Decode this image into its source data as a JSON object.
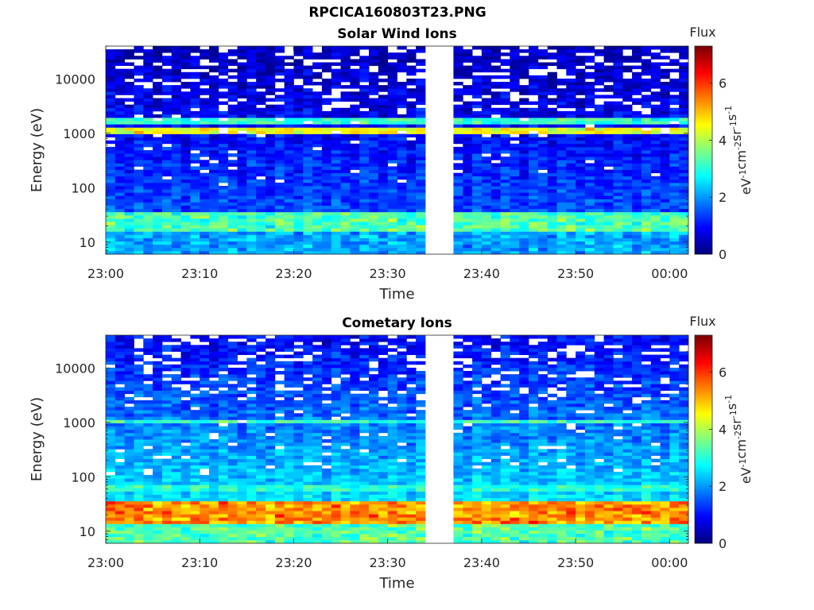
{
  "figure": {
    "filename_title": "RPCICA160803T23.PNG"
  },
  "chart_data": [
    {
      "type": "heatmap",
      "title": "Solar Wind Ions",
      "xlabel": "Time",
      "ylabel": "Energy (eV)",
      "y_scale": "log",
      "xlim": [
        "23:00",
        "00:02"
      ],
      "ylim": [
        6,
        40000
      ],
      "x_ticks": [
        "23:00",
        "23:10",
        "23:20",
        "23:30",
        "23:40",
        "23:50",
        "00:00"
      ],
      "y_ticks": [
        10,
        100,
        1000,
        10000
      ],
      "y_tick_labels": [
        "10",
        "100",
        "1000",
        "10000"
      ],
      "data_gap": [
        "23:34",
        "23:37"
      ],
      "colorbar": {
        "label_top": "Flux",
        "label": "eV-1cm-2sr-1s-1",
        "range": [
          0,
          7.3
        ],
        "ticks": [
          0,
          2,
          4,
          6
        ],
        "colormap": "jet"
      },
      "features": [
        {
          "energy_eV": 1000,
          "flux_level": 4.5,
          "note": "bright band at ~1000 eV"
        },
        {
          "energy_eV": 22,
          "flux_level": 3.5,
          "note": "band at ~20-30 eV"
        },
        {
          "energy_eV": 10000,
          "flux_level": 0.5,
          "note": "background at high energies"
        }
      ]
    },
    {
      "type": "heatmap",
      "title": "Cometary Ions",
      "xlabel": "Time",
      "ylabel": "Energy (eV)",
      "y_scale": "log",
      "xlim": [
        "23:00",
        "00:02"
      ],
      "ylim": [
        6,
        40000
      ],
      "x_ticks": [
        "23:00",
        "23:10",
        "23:20",
        "23:30",
        "23:40",
        "23:50",
        "00:00"
      ],
      "y_ticks": [
        10,
        100,
        1000,
        10000
      ],
      "y_tick_labels": [
        "10",
        "100",
        "1000",
        "10000"
      ],
      "data_gap": [
        "23:34",
        "23:37"
      ],
      "colorbar": {
        "label_top": "Flux",
        "label": "eV-1cm-2sr-1s-1",
        "range": [
          0,
          7.3
        ],
        "ticks": [
          0,
          2,
          4,
          6
        ],
        "colormap": "jet"
      },
      "features": [
        {
          "energy_eV": 20,
          "flux_level": 5.5,
          "note": "intense band at ~15-30 eV"
        },
        {
          "energy_eV": 1000,
          "flux_level": 3.2,
          "note": "band at ~1000 eV"
        },
        {
          "energy_eV": 10000,
          "flux_level": 0.5,
          "note": "background at high energies"
        }
      ]
    }
  ]
}
